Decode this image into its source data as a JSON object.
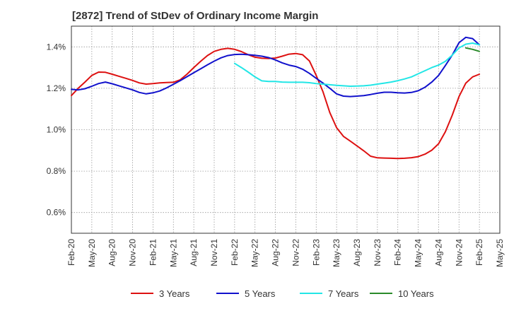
{
  "chart_data": {
    "type": "line",
    "title": "[2872]  Trend of StDev of Ordinary Income Margin",
    "xlabel": "",
    "ylabel": "",
    "x_axis": {
      "start": "Feb-20",
      "end": "May-25",
      "tick_labels": [
        "Feb-20",
        "May-20",
        "Aug-20",
        "Nov-20",
        "Feb-21",
        "May-21",
        "Aug-21",
        "Nov-21",
        "Feb-22",
        "May-22",
        "Aug-22",
        "Nov-22",
        "Feb-23",
        "May-23",
        "Aug-23",
        "Nov-23",
        "Feb-24",
        "May-24",
        "Aug-24",
        "Nov-24",
        "Feb-25",
        "May-25"
      ]
    },
    "y_axis": {
      "min": 0.5,
      "max": 1.5,
      "unit": "%",
      "ticks": [
        0.6,
        0.8,
        1.0,
        1.2,
        1.4
      ],
      "tick_labels": [
        "0.6%",
        "0.8%",
        "1.0%",
        "1.2%",
        "1.4%"
      ]
    },
    "grid": "dotted horizontal and vertical",
    "legend_position": "bottom",
    "series": [
      {
        "name": "3 Years",
        "color": "#dd1111",
        "x": [
          "Feb-20",
          "Mar-20",
          "Apr-20",
          "May-20",
          "Jun-20",
          "Jul-20",
          "Aug-20",
          "Sep-20",
          "Oct-20",
          "Nov-20",
          "Dec-20",
          "Jan-21",
          "Feb-21",
          "Mar-21",
          "Apr-21",
          "May-21",
          "Jun-21",
          "Jul-21",
          "Aug-21",
          "Sep-21",
          "Oct-21",
          "Nov-21",
          "Dec-21",
          "Jan-22",
          "Feb-22",
          "Mar-22",
          "Apr-22",
          "May-22",
          "Jun-22",
          "Jul-22",
          "Aug-22",
          "Sep-22",
          "Oct-22",
          "Nov-22",
          "Dec-22",
          "Jan-23",
          "Feb-23",
          "Mar-23",
          "Apr-23",
          "May-23",
          "Jun-23",
          "Jul-23",
          "Aug-23",
          "Sep-23",
          "Oct-23",
          "Nov-23",
          "Dec-23",
          "Jan-24",
          "Feb-24",
          "Mar-24",
          "Apr-24",
          "May-24",
          "Jun-24",
          "Jul-24",
          "Aug-24",
          "Sep-24",
          "Oct-24",
          "Nov-24",
          "Dec-24",
          "Jan-25",
          "Feb-25"
        ],
        "values": [
          1.165,
          1.2,
          1.23,
          1.262,
          1.278,
          1.277,
          1.268,
          1.258,
          1.248,
          1.238,
          1.226,
          1.22,
          1.223,
          1.226,
          1.228,
          1.229,
          1.241,
          1.268,
          1.3,
          1.33,
          1.358,
          1.378,
          1.388,
          1.393,
          1.388,
          1.377,
          1.362,
          1.35,
          1.345,
          1.344,
          1.346,
          1.355,
          1.365,
          1.368,
          1.362,
          1.332,
          1.262,
          1.183,
          1.083,
          1.01,
          0.968,
          0.945,
          0.922,
          0.898,
          0.872,
          0.864,
          0.863,
          0.862,
          0.861,
          0.862,
          0.865,
          0.87,
          0.882,
          0.901,
          0.932,
          0.99,
          1.07,
          1.16,
          1.225,
          1.255,
          1.268
        ]
      },
      {
        "name": "5 Years",
        "color": "#1111cc",
        "x": [
          "Feb-20",
          "Mar-20",
          "Apr-20",
          "May-20",
          "Jun-20",
          "Jul-20",
          "Aug-20",
          "Sep-20",
          "Oct-20",
          "Nov-20",
          "Dec-20",
          "Jan-21",
          "Feb-21",
          "Mar-21",
          "Apr-21",
          "May-21",
          "Jun-21",
          "Jul-21",
          "Aug-21",
          "Sep-21",
          "Oct-21",
          "Nov-21",
          "Dec-21",
          "Jan-22",
          "Feb-22",
          "Mar-22",
          "Apr-22",
          "May-22",
          "Jun-22",
          "Jul-22",
          "Aug-22",
          "Sep-22",
          "Oct-22",
          "Nov-22",
          "Dec-22",
          "Jan-23",
          "Feb-23",
          "Mar-23",
          "Apr-23",
          "May-23",
          "Jun-23",
          "Jul-23",
          "Aug-23",
          "Sep-23",
          "Oct-23",
          "Nov-23",
          "Dec-23",
          "Jan-24",
          "Feb-24",
          "Mar-24",
          "Apr-24",
          "May-24",
          "Jun-24",
          "Jul-24",
          "Aug-24",
          "Sep-24",
          "Oct-24",
          "Nov-24",
          "Dec-24",
          "Jan-25",
          "Feb-25"
        ],
        "values": [
          1.195,
          1.192,
          1.198,
          1.21,
          1.223,
          1.23,
          1.222,
          1.212,
          1.202,
          1.192,
          1.18,
          1.173,
          1.178,
          1.187,
          1.202,
          1.219,
          1.237,
          1.256,
          1.275,
          1.294,
          1.313,
          1.331,
          1.347,
          1.358,
          1.363,
          1.364,
          1.362,
          1.359,
          1.355,
          1.348,
          1.337,
          1.323,
          1.312,
          1.305,
          1.292,
          1.272,
          1.248,
          1.225,
          1.2,
          1.173,
          1.162,
          1.16,
          1.162,
          1.165,
          1.17,
          1.176,
          1.181,
          1.181,
          1.178,
          1.177,
          1.18,
          1.188,
          1.205,
          1.23,
          1.262,
          1.31,
          1.36,
          1.42,
          1.446,
          1.44,
          1.41
        ]
      },
      {
        "name": "7 Years",
        "color": "#22e6e6",
        "x": [
          "Feb-22",
          "Mar-22",
          "Apr-22",
          "May-22",
          "Jun-22",
          "Jul-22",
          "Aug-22",
          "Sep-22",
          "Oct-22",
          "Nov-22",
          "Dec-22",
          "Jan-23",
          "Feb-23",
          "Mar-23",
          "Apr-23",
          "May-23",
          "Jun-23",
          "Jul-23",
          "Aug-23",
          "Sep-23",
          "Oct-23",
          "Nov-23",
          "Dec-23",
          "Jan-24",
          "Feb-24",
          "Mar-24",
          "Apr-24",
          "May-24",
          "Jun-24",
          "Jul-24",
          "Aug-24",
          "Sep-24",
          "Oct-24",
          "Nov-24",
          "Dec-24",
          "Jan-25",
          "Feb-25"
        ],
        "values": [
          1.32,
          1.3,
          1.278,
          1.255,
          1.236,
          1.233,
          1.233,
          1.23,
          1.229,
          1.229,
          1.229,
          1.227,
          1.223,
          1.22,
          1.217,
          1.214,
          1.212,
          1.21,
          1.211,
          1.212,
          1.215,
          1.22,
          1.225,
          1.23,
          1.237,
          1.245,
          1.255,
          1.27,
          1.285,
          1.3,
          1.312,
          1.33,
          1.36,
          1.395,
          1.413,
          1.418,
          1.41
        ]
      },
      {
        "name": "10 Years",
        "color": "#2a8a2a",
        "x": [
          "Dec-24",
          "Jan-25",
          "Feb-25"
        ],
        "values": [
          1.395,
          1.388,
          1.378
        ]
      }
    ]
  }
}
